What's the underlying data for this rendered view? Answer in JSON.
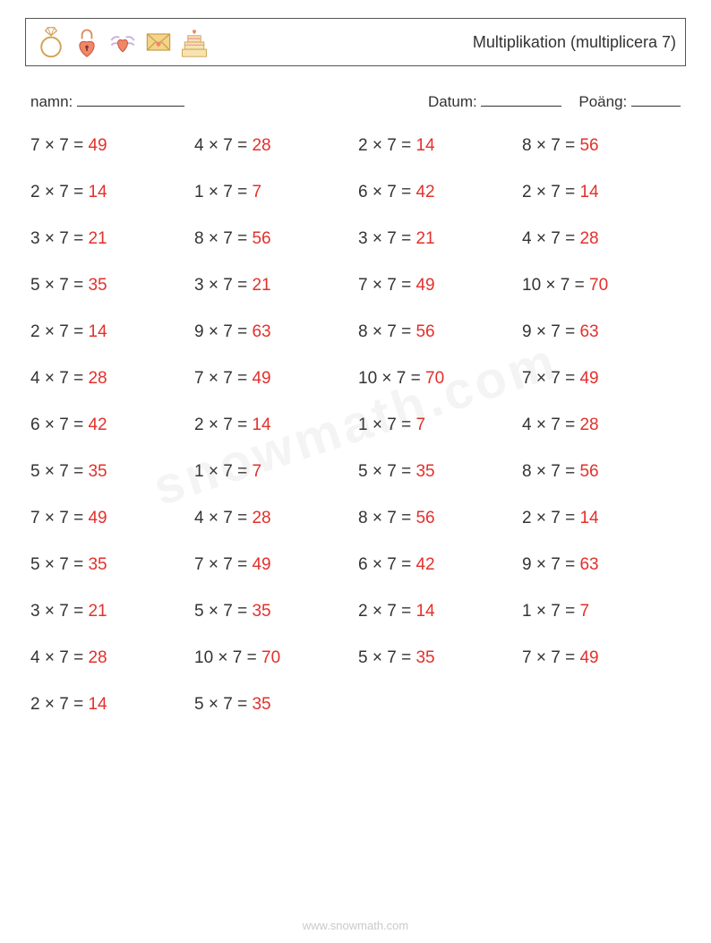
{
  "header": {
    "title": "Multiplikation (multiplicera 7)",
    "icons": [
      "ring",
      "heart-lock",
      "winged-heart",
      "love-letter",
      "heart-cake"
    ]
  },
  "meta": {
    "name_label": "namn:",
    "date_label": "Datum:",
    "score_label": "Poäng:"
  },
  "style": {
    "question_color": "#333333",
    "answer_color": "#e3302b",
    "background": "#ffffff",
    "font_size_problem": 19,
    "font_size_title": 18,
    "font_size_meta": 17,
    "columns": 4,
    "row_gap": 30
  },
  "problems": [
    {
      "a": 7,
      "b": 7,
      "ans": 49
    },
    {
      "a": 4,
      "b": 7,
      "ans": 28
    },
    {
      "a": 2,
      "b": 7,
      "ans": 14
    },
    {
      "a": 8,
      "b": 7,
      "ans": 56
    },
    {
      "a": 2,
      "b": 7,
      "ans": 14
    },
    {
      "a": 1,
      "b": 7,
      "ans": 7
    },
    {
      "a": 6,
      "b": 7,
      "ans": 42
    },
    {
      "a": 2,
      "b": 7,
      "ans": 14
    },
    {
      "a": 3,
      "b": 7,
      "ans": 21
    },
    {
      "a": 8,
      "b": 7,
      "ans": 56
    },
    {
      "a": 3,
      "b": 7,
      "ans": 21
    },
    {
      "a": 4,
      "b": 7,
      "ans": 28
    },
    {
      "a": 5,
      "b": 7,
      "ans": 35
    },
    {
      "a": 3,
      "b": 7,
      "ans": 21
    },
    {
      "a": 7,
      "b": 7,
      "ans": 49
    },
    {
      "a": 10,
      "b": 7,
      "ans": 70
    },
    {
      "a": 2,
      "b": 7,
      "ans": 14
    },
    {
      "a": 9,
      "b": 7,
      "ans": 63
    },
    {
      "a": 8,
      "b": 7,
      "ans": 56
    },
    {
      "a": 9,
      "b": 7,
      "ans": 63
    },
    {
      "a": 4,
      "b": 7,
      "ans": 28
    },
    {
      "a": 7,
      "b": 7,
      "ans": 49
    },
    {
      "a": 10,
      "b": 7,
      "ans": 70
    },
    {
      "a": 7,
      "b": 7,
      "ans": 49
    },
    {
      "a": 6,
      "b": 7,
      "ans": 42
    },
    {
      "a": 2,
      "b": 7,
      "ans": 14
    },
    {
      "a": 1,
      "b": 7,
      "ans": 7
    },
    {
      "a": 4,
      "b": 7,
      "ans": 28
    },
    {
      "a": 5,
      "b": 7,
      "ans": 35
    },
    {
      "a": 1,
      "b": 7,
      "ans": 7
    },
    {
      "a": 5,
      "b": 7,
      "ans": 35
    },
    {
      "a": 8,
      "b": 7,
      "ans": 56
    },
    {
      "a": 7,
      "b": 7,
      "ans": 49
    },
    {
      "a": 4,
      "b": 7,
      "ans": 28
    },
    {
      "a": 8,
      "b": 7,
      "ans": 56
    },
    {
      "a": 2,
      "b": 7,
      "ans": 14
    },
    {
      "a": 5,
      "b": 7,
      "ans": 35
    },
    {
      "a": 7,
      "b": 7,
      "ans": 49
    },
    {
      "a": 6,
      "b": 7,
      "ans": 42
    },
    {
      "a": 9,
      "b": 7,
      "ans": 63
    },
    {
      "a": 3,
      "b": 7,
      "ans": 21
    },
    {
      "a": 5,
      "b": 7,
      "ans": 35
    },
    {
      "a": 2,
      "b": 7,
      "ans": 14
    },
    {
      "a": 1,
      "b": 7,
      "ans": 7
    },
    {
      "a": 4,
      "b": 7,
      "ans": 28
    },
    {
      "a": 10,
      "b": 7,
      "ans": 70
    },
    {
      "a": 5,
      "b": 7,
      "ans": 35
    },
    {
      "a": 7,
      "b": 7,
      "ans": 49
    },
    {
      "a": 2,
      "b": 7,
      "ans": 14
    },
    {
      "a": 5,
      "b": 7,
      "ans": 35
    }
  ],
  "watermark": "snowmath.com",
  "footer": "www.snowmath.com"
}
